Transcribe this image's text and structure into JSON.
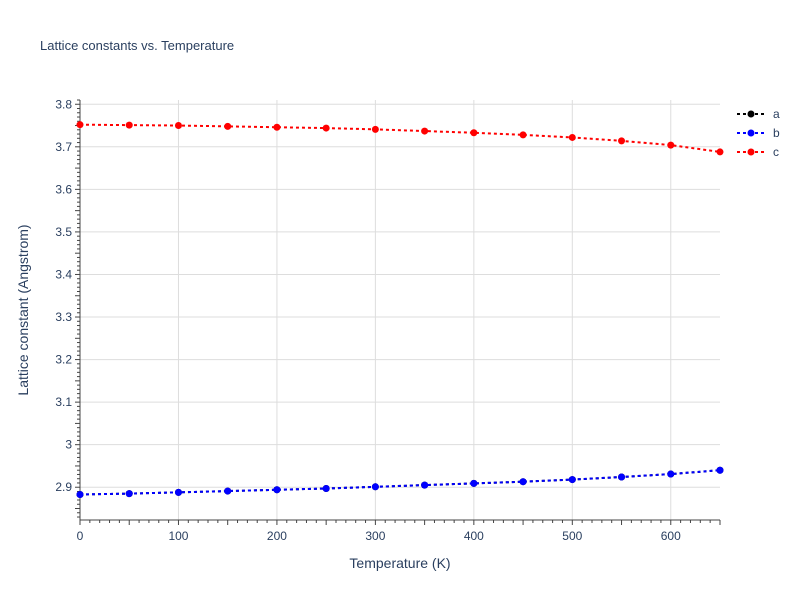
{
  "chart_data": {
    "type": "line",
    "title": "Lattice constants vs. Temperature",
    "xlabel": "Temperature (K)",
    "ylabel": "Lattice constant (Angstrom)",
    "xlim": [
      0,
      650
    ],
    "ylim": [
      2.823,
      3.81
    ],
    "x_ticks": [
      0,
      100,
      200,
      300,
      400,
      500,
      600
    ],
    "y_ticks": [
      2.9,
      3.0,
      3.1,
      3.2,
      3.3,
      3.4,
      3.5,
      3.6,
      3.7,
      3.8
    ],
    "x_tick_labels": [
      "0",
      "100",
      "200",
      "300",
      "400",
      "500",
      "600"
    ],
    "y_tick_labels": [
      "2.9",
      "3",
      "3.1",
      "3.2",
      "3.3",
      "3.4",
      "3.5",
      "3.6",
      "3.7",
      "3.8"
    ],
    "grid": true,
    "legend_position": "top-right",
    "x": [
      0,
      50,
      100,
      150,
      200,
      250,
      300,
      350,
      400,
      450,
      500,
      550,
      600,
      650
    ],
    "series": [
      {
        "name": "a",
        "color": "#000000",
        "values": [
          2.883,
          2.885,
          2.888,
          2.891,
          2.894,
          2.897,
          2.901,
          2.905,
          2.909,
          2.913,
          2.918,
          2.924,
          2.931,
          2.94
        ]
      },
      {
        "name": "b",
        "color": "#0000ff",
        "values": [
          2.883,
          2.885,
          2.888,
          2.891,
          2.894,
          2.897,
          2.901,
          2.905,
          2.909,
          2.913,
          2.918,
          2.924,
          2.931,
          2.94
        ]
      },
      {
        "name": "c",
        "color": "#ff0000",
        "values": [
          3.752,
          3.751,
          3.75,
          3.748,
          3.746,
          3.744,
          3.741,
          3.737,
          3.733,
          3.728,
          3.722,
          3.714,
          3.704,
          3.688
        ]
      }
    ]
  }
}
